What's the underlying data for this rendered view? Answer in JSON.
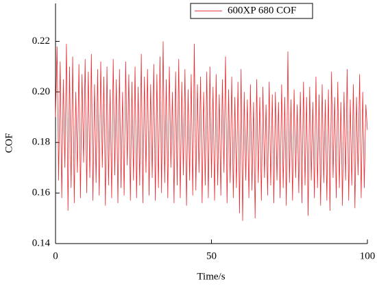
{
  "chart_data": {
    "type": "line",
    "x_label": "Time/s",
    "y_label": "COF",
    "x": [
      0,
      0.5,
      1,
      1.5,
      2,
      2.5,
      3,
      3.5,
      4,
      4.5,
      5,
      5.5,
      6,
      6.5,
      7,
      7.5,
      8,
      8.5,
      9,
      9.5,
      10,
      10.5,
      11,
      11.5,
      12,
      12.5,
      13,
      13.5,
      14,
      14.5,
      15,
      15.5,
      16,
      16.5,
      17,
      17.5,
      18,
      18.5,
      19,
      19.5,
      20,
      20.5,
      21,
      21.5,
      22,
      22.5,
      23,
      23.5,
      24,
      24.5,
      25,
      25.5,
      26,
      26.5,
      27,
      27.5,
      28,
      28.5,
      29,
      29.5,
      30,
      30.5,
      31,
      31.5,
      32,
      32.5,
      33,
      33.5,
      34,
      34.5,
      35,
      35.5,
      36,
      36.5,
      37,
      37.5,
      38,
      38.5,
      39,
      39.5,
      40,
      40.5,
      41,
      41.5,
      42,
      42.5,
      43,
      43.5,
      44,
      44.5,
      45,
      45.5,
      46,
      46.5,
      47,
      47.5,
      48,
      48.5,
      49,
      49.5,
      50,
      50.5,
      51,
      51.5,
      52,
      52.5,
      53,
      53.5,
      54,
      54.5,
      55,
      55.5,
      56,
      56.5,
      57,
      57.5,
      58,
      58.5,
      59,
      59.5,
      60,
      60.5,
      61,
      61.5,
      62,
      62.5,
      63,
      63.5,
      64,
      64.5,
      65,
      65.5,
      66,
      66.5,
      67,
      67.5,
      68,
      68.5,
      69,
      69.5,
      70,
      70.5,
      71,
      71.5,
      72,
      72.5,
      73,
      73.5,
      74,
      74.5,
      75,
      75.5,
      76,
      76.5,
      77,
      77.5,
      78,
      78.5,
      79,
      79.5,
      80,
      80.5,
      81,
      81.5,
      82,
      82.5,
      83,
      83.5,
      84,
      84.5,
      85,
      85.5,
      86,
      86.5,
      87,
      87.5,
      88,
      88.5,
      89,
      89.5,
      90,
      90.5,
      91,
      91.5,
      92,
      92.5,
      93,
      93.5,
      94,
      94.5,
      95,
      95.5,
      96,
      96.5,
      97,
      97.5,
      98,
      98.5,
      99,
      99.5,
      100
    ],
    "series": [
      {
        "name": "600XP 680 COF",
        "color": "#e8262b",
        "values": [
          0.19,
          0.218,
          0.165,
          0.212,
          0.158,
          0.205,
          0.17,
          0.219,
          0.153,
          0.21,
          0.162,
          0.214,
          0.156,
          0.2,
          0.168,
          0.211,
          0.158,
          0.207,
          0.172,
          0.213,
          0.16,
          0.208,
          0.166,
          0.215,
          0.157,
          0.203,
          0.164,
          0.209,
          0.159,
          0.212,
          0.17,
          0.206,
          0.155,
          0.21,
          0.163,
          0.201,
          0.158,
          0.213,
          0.167,
          0.205,
          0.156,
          0.209,
          0.162,
          0.2,
          0.159,
          0.212,
          0.171,
          0.207,
          0.157,
          0.204,
          0.165,
          0.21,
          0.158,
          0.202,
          0.163,
          0.215,
          0.156,
          0.206,
          0.168,
          0.209,
          0.159,
          0.203,
          0.166,
          0.211,
          0.157,
          0.207,
          0.162,
          0.214,
          0.16,
          0.22,
          0.164,
          0.205,
          0.158,
          0.21,
          0.17,
          0.2,
          0.156,
          0.208,
          0.163,
          0.213,
          0.158,
          0.204,
          0.167,
          0.209,
          0.155,
          0.201,
          0.165,
          0.207,
          0.159,
          0.219,
          0.161,
          0.203,
          0.168,
          0.206,
          0.156,
          0.2,
          0.163,
          0.208,
          0.158,
          0.21,
          0.166,
          0.202,
          0.157,
          0.207,
          0.163,
          0.199,
          0.159,
          0.205,
          0.168,
          0.214,
          0.156,
          0.201,
          0.164,
          0.206,
          0.158,
          0.198,
          0.162,
          0.204,
          0.152,
          0.209,
          0.149,
          0.2,
          0.165,
          0.197,
          0.158,
          0.203,
          0.161,
          0.196,
          0.15,
          0.205,
          0.164,
          0.198,
          0.157,
          0.202,
          0.166,
          0.195,
          0.159,
          0.204,
          0.163,
          0.199,
          0.156,
          0.2,
          0.165,
          0.196,
          0.158,
          0.203,
          0.162,
          0.198,
          0.155,
          0.216,
          0.164,
          0.197,
          0.157,
          0.201,
          0.166,
          0.195,
          0.16,
          0.2,
          0.156,
          0.204,
          0.163,
          0.198,
          0.151,
          0.202,
          0.165,
          0.196,
          0.158,
          0.206,
          0.162,
          0.199,
          0.155,
          0.203,
          0.164,
          0.197,
          0.157,
          0.201,
          0.153,
          0.208,
          0.166,
          0.198,
          0.158,
          0.204,
          0.162,
          0.196,
          0.155,
          0.2,
          0.165,
          0.209,
          0.157,
          0.197,
          0.163,
          0.203,
          0.154,
          0.198,
          0.167,
          0.207,
          0.158,
          0.2,
          0.162,
          0.195,
          0.185
        ]
      }
    ],
    "xlim": [
      0,
      100
    ],
    "xticks": [
      0,
      50,
      100
    ],
    "ylim": [
      0.14,
      0.235
    ],
    "yticks": [
      0.14,
      0.16,
      0.18,
      {
        "value": 0.2,
        "label": "0.20"
      },
      0.22
    ],
    "grid": false,
    "legend": "top"
  }
}
